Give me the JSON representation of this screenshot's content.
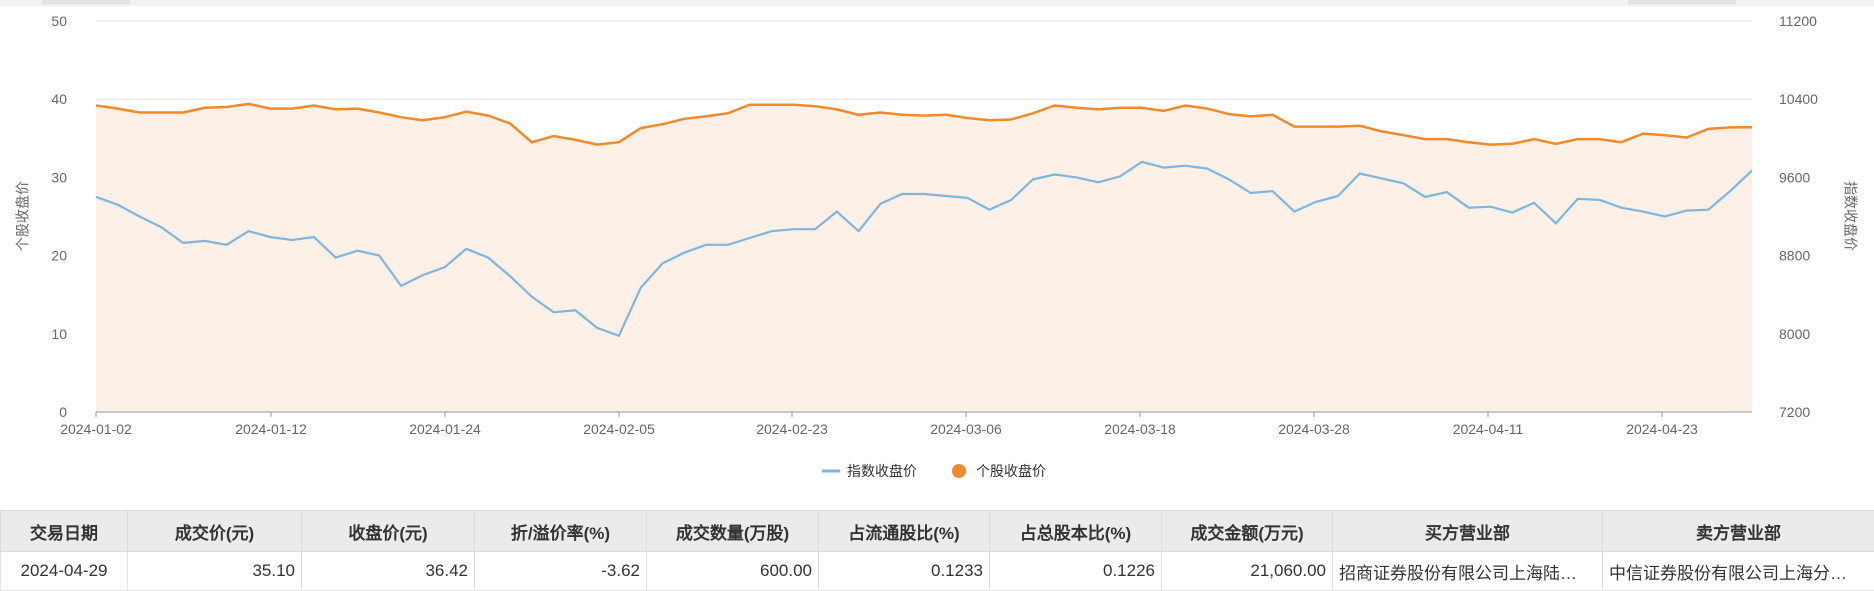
{
  "chart_data": {
    "type": "line",
    "x_ticks": [
      "2024-01-02",
      "2024-01-12",
      "2024-01-24",
      "2024-02-05",
      "2024-02-23",
      "2024-03-06",
      "2024-03-18",
      "2024-03-28",
      "2024-04-11",
      "2024-04-23"
    ],
    "y_left": {
      "label": "个股收盘价",
      "min": 0,
      "max": 50,
      "ticks": [
        0,
        10,
        20,
        30,
        40,
        50
      ]
    },
    "y_right": {
      "label": "指数收盘价",
      "min": 7200,
      "max": 11200,
      "ticks": [
        7200,
        8000,
        8800,
        9600,
        10400,
        11200
      ]
    },
    "series": [
      {
        "name": "指数收盘价",
        "axis": "right",
        "color": "#7eb6dd",
        "values": [
          9400,
          9320,
          9200,
          9090,
          8930,
          8950,
          8910,
          9050,
          8990,
          8960,
          8990,
          8780,
          8850,
          8800,
          8490,
          8600,
          8680,
          8870,
          8780,
          8590,
          8380,
          8220,
          8240,
          8060,
          7980,
          8470,
          8720,
          8830,
          8910,
          8910,
          8980,
          9050,
          9070,
          9070,
          9250,
          9050,
          9330,
          9430,
          9430,
          9410,
          9390,
          9270,
          9370,
          9580,
          9630,
          9600,
          9550,
          9610,
          9760,
          9700,
          9720,
          9690,
          9580,
          9440,
          9460,
          9250,
          9350,
          9410,
          9640,
          9590,
          9540,
          9400,
          9450,
          9290,
          9300,
          9240,
          9340,
          9130,
          9380,
          9370,
          9290,
          9250,
          9200,
          9260,
          9270,
          9460,
          9670
        ]
      },
      {
        "name": "个股收盘价",
        "axis": "left",
        "color": "#f08a2b",
        "fill": "#fdf0e6",
        "values": [
          39.2,
          38.8,
          38.3,
          38.3,
          38.3,
          38.9,
          39.0,
          39.4,
          38.8,
          38.8,
          39.2,
          38.7,
          38.8,
          38.3,
          37.7,
          37.3,
          37.7,
          38.4,
          37.9,
          36.9,
          34.5,
          35.3,
          34.8,
          34.2,
          34.5,
          36.3,
          36.8,
          37.5,
          37.8,
          38.2,
          39.3,
          39.3,
          39.3,
          39.1,
          38.7,
          38.0,
          38.3,
          38.0,
          37.9,
          38.0,
          37.6,
          37.3,
          37.4,
          38.2,
          39.2,
          38.9,
          38.7,
          38.9,
          38.9,
          38.5,
          39.2,
          38.8,
          38.1,
          37.8,
          38.0,
          36.5,
          36.5,
          36.5,
          36.6,
          35.9,
          35.4,
          34.9,
          34.9,
          34.5,
          34.2,
          34.3,
          34.9,
          34.3,
          34.9,
          34.9,
          34.5,
          35.6,
          35.4,
          35.1,
          36.2,
          36.4,
          36.42
        ]
      }
    ],
    "legend_position": "bottom-center"
  },
  "table": {
    "headers": [
      "交易日期",
      "成交价(元)",
      "收盘价(元)",
      "折/溢价率(%)",
      "成交数量(万股)",
      "占流通股比(%)",
      "占总股本比(%)",
      "成交金额(万元)",
      "买方营业部",
      "卖方营业部"
    ],
    "rows": [
      [
        "2024-04-29",
        "35.10",
        "36.42",
        "-3.62",
        "600.00",
        "0.1233",
        "0.1226",
        "21,060.00",
        "招商证券股份有限公司上海陆…",
        "中信证券股份有限公司上海分…"
      ]
    ]
  }
}
